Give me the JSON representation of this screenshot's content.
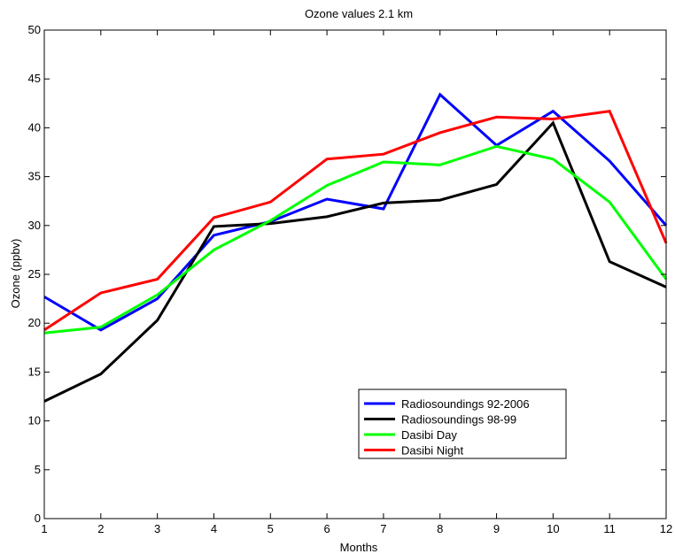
{
  "chart_data": {
    "type": "line",
    "title": "Ozone values 2.1 km",
    "xlabel": "Months",
    "ylabel": "Ozone (ppbv)",
    "xlim": [
      1,
      12
    ],
    "ylim": [
      0,
      50
    ],
    "x_ticks": [
      "1",
      "2",
      "3",
      "4",
      "5",
      "6",
      "7",
      "8",
      "9",
      "10",
      "11",
      "12"
    ],
    "y_ticks": [
      "0",
      "5",
      "10",
      "15",
      "20",
      "25",
      "30",
      "35",
      "40",
      "45",
      "50"
    ],
    "grid": false,
    "legend_position": "bottom-right",
    "x": [
      1,
      2,
      3,
      4,
      5,
      6,
      7,
      8,
      9,
      10,
      11,
      12
    ],
    "series": [
      {
        "name": "Radiosoundings 92-2006",
        "color": "#0000ff",
        "values": [
          22.7,
          19.3,
          22.5,
          29.0,
          30.4,
          32.7,
          31.7,
          43.4,
          38.2,
          41.7,
          36.6,
          30.0
        ]
      },
      {
        "name": "Radiosoundings 98-99",
        "color": "#000000",
        "values": [
          12.0,
          14.8,
          20.3,
          29.9,
          30.2,
          30.9,
          32.3,
          32.6,
          34.2,
          40.5,
          26.3,
          23.7
        ]
      },
      {
        "name": "Dasibi Day",
        "color": "#00ff00",
        "values": [
          19.0,
          19.6,
          22.9,
          27.5,
          30.5,
          34.1,
          36.5,
          36.2,
          38.1,
          36.8,
          32.4,
          24.5
        ]
      },
      {
        "name": "Dasibi Night",
        "color": "#ff0000",
        "values": [
          19.3,
          23.1,
          24.5,
          30.8,
          32.4,
          36.8,
          37.3,
          39.5,
          41.1,
          40.9,
          41.7,
          28.2
        ]
      }
    ]
  }
}
